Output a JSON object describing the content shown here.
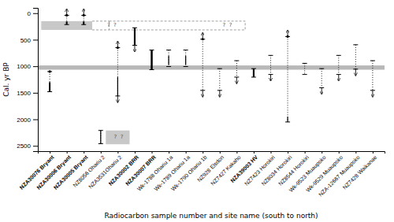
{
  "chart_data": {
    "type": "range",
    "xlabel": "Radiocarbon sample number and site name (south to north)",
    "ylabel": "Cal. yr BP",
    "categories": [
      "NZA30076 Bryant",
      "NZA30006 Bryant",
      "NZA30005 Bryant",
      "NZ8056 Ohariu 2",
      "NZA3531Ohariu 2",
      "NZA30002 BRR",
      "NZA30007 BRR",
      "Wk-1788 Ohariu 1a",
      "Wk-1789 Ohariu 1a",
      "Wk-1790 Ohariu 1b",
      "NZ928 Elsdon",
      "NZ7427 Kakaho",
      "NZA39003 HV",
      "NZ7423 Horokiri",
      "NZ8034 Horokiri",
      "NZ8544 Horokiri",
      "Wk-9523 Muaupoko",
      "Wk-9529 Muaupoko",
      "NZA-12667 Muaupoko",
      "NZ7428 Waikanae"
    ],
    "bold": [
      true,
      true,
      true,
      false,
      false,
      true,
      true,
      false,
      false,
      false,
      false,
      false,
      true,
      false,
      false,
      false,
      false,
      false,
      false,
      false
    ],
    "top": [
      1100,
      40,
      40,
      2210,
      650,
      275,
      695,
      695,
      695,
      490,
      1045,
      895,
      1045,
      795,
      440,
      945,
      1045,
      795,
      595,
      895
    ],
    "bottom": [
      1480,
      215,
      215,
      2460,
      1560,
      605,
      1065,
      1005,
      1005,
      1455,
      1455,
      1205,
      1205,
      1155,
      2050,
      1155,
      1405,
      1155,
      1055,
      1455
    ],
    "solid": [
      [
        1300,
        1480
      ],
      [
        155,
        215
      ],
      [
        155,
        215
      ],
      [
        2210,
        2460
      ],
      [
        1200,
        1560
      ],
      [
        275,
        605
      ],
      [
        695,
        1065
      ],
      [
        800,
        970
      ],
      [
        800,
        970
      ],
      null,
      null,
      null,
      [
        1045,
        1205
      ],
      null,
      [
        1950,
        2050
      ],
      null,
      null,
      null,
      null,
      null
    ],
    "dashed": [
      true,
      true,
      true,
      true,
      true,
      false,
      false,
      true,
      true,
      true,
      true,
      true,
      false,
      true,
      true,
      true,
      true,
      true,
      true,
      true
    ],
    "arrow_up": [
      false,
      true,
      true,
      false,
      true,
      false,
      false,
      false,
      false,
      true,
      false,
      false,
      false,
      false,
      true,
      false,
      false,
      false,
      false,
      false
    ],
    "arrow_down": [
      false,
      false,
      false,
      false,
      true,
      true,
      false,
      false,
      false,
      true,
      true,
      true,
      false,
      true,
      false,
      false,
      true,
      true,
      true,
      true
    ],
    "dot_top": [
      1100,
      40,
      40,
      null,
      650,
      null,
      null,
      null,
      null,
      490,
      null,
      null,
      null,
      null,
      440,
      null,
      null,
      null,
      null,
      null
    ],
    "boxes": [
      {
        "x0": -0.5,
        "x1": 2.5,
        "y0": 150,
        "y1": 315
      },
      {
        "x0": 3.3,
        "x1": 4.7,
        "y0": 2210,
        "y1": 2470
      }
    ],
    "band": {
      "y0": 985,
      "y1": 1065
    },
    "dashed_box": {
      "x0": 3.5,
      "x1": 11.5,
      "y0": 150,
      "y1": 315
    },
    "annotations": [
      {
        "text": "?  ?",
        "x": 3.65,
        "y": 232
      },
      {
        "text": "?  ?",
        "x": 10.45,
        "y": 232
      },
      {
        "text": "?  ?",
        "x": 4.05,
        "y": 2340
      }
    ],
    "xlim": [
      -0.7,
      19.7
    ],
    "ylim": [
      2600,
      -100
    ],
    "yticks": [
      0,
      500,
      1000,
      1500,
      2000,
      2500
    ]
  }
}
